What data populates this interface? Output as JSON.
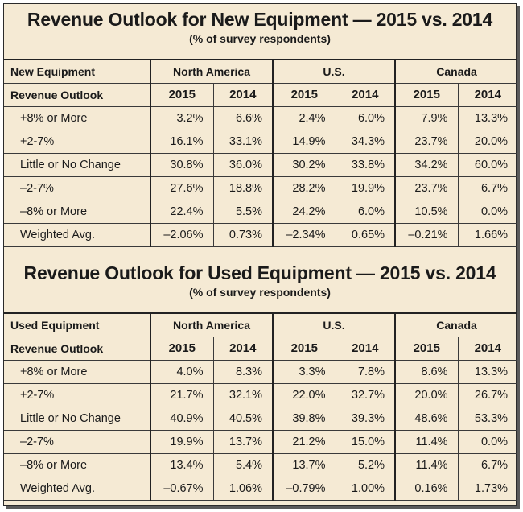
{
  "new_equipment": {
    "title": "Revenue Outlook for New Equipment — 2015 vs. 2014",
    "subtitle": "(% of survey respondents)",
    "corner_label": "New Equipment",
    "row_header": "Revenue Outlook",
    "regions": [
      "North America",
      "U.S.",
      "Canada"
    ],
    "years": [
      "2015",
      "2014",
      "2015",
      "2014",
      "2015",
      "2014"
    ],
    "rows": [
      {
        "label": "+8% or More",
        "values": [
          "3.2%",
          "6.6%",
          "2.4%",
          "6.0%",
          "7.9%",
          "13.3%"
        ]
      },
      {
        "label": "+2-7%",
        "values": [
          "16.1%",
          "33.1%",
          "14.9%",
          "34.3%",
          "23.7%",
          "20.0%"
        ]
      },
      {
        "label": "Little or No Change",
        "values": [
          "30.8%",
          "36.0%",
          "30.2%",
          "33.8%",
          "34.2%",
          "60.0%"
        ]
      },
      {
        "label": "–2-7%",
        "values": [
          "27.6%",
          "18.8%",
          "28.2%",
          "19.9%",
          "23.7%",
          "6.7%"
        ]
      },
      {
        "label": "–8% or More",
        "values": [
          "22.4%",
          "5.5%",
          "24.2%",
          "6.0%",
          "10.5%",
          "0.0%"
        ]
      },
      {
        "label": "Weighted Avg.",
        "values": [
          "–2.06%",
          "0.73%",
          "–2.34%",
          "0.65%",
          "–0.21%",
          "1.66%"
        ]
      }
    ]
  },
  "used_equipment": {
    "title": "Revenue Outlook for Used Equipment — 2015 vs. 2014",
    "subtitle": "(% of survey respondents)",
    "corner_label": "Used Equipment",
    "row_header": "Revenue Outlook",
    "regions": [
      "North America",
      "U.S.",
      "Canada"
    ],
    "years": [
      "2015",
      "2014",
      "2015",
      "2014",
      "2015",
      "2014"
    ],
    "rows": [
      {
        "label": "+8% or More",
        "values": [
          "4.0%",
          "8.3%",
          "3.3%",
          "7.8%",
          "8.6%",
          "13.3%"
        ]
      },
      {
        "label": "+2-7%",
        "values": [
          "21.7%",
          "32.1%",
          "22.0%",
          "32.7%",
          "20.0%",
          "26.7%"
        ]
      },
      {
        "label": "Little or No Change",
        "values": [
          "40.9%",
          "40.5%",
          "39.8%",
          "39.3%",
          "48.6%",
          "53.3%"
        ]
      },
      {
        "label": "–2-7%",
        "values": [
          "19.9%",
          "13.7%",
          "21.2%",
          "15.0%",
          "11.4%",
          "0.0%"
        ]
      },
      {
        "label": "–8% or More",
        "values": [
          "13.4%",
          "5.4%",
          "13.7%",
          "5.2%",
          "11.4%",
          "6.7%"
        ]
      },
      {
        "label": "Weighted Avg.",
        "values": [
          "–0.67%",
          "1.06%",
          "–0.79%",
          "1.00%",
          "0.16%",
          "1.73%"
        ]
      }
    ]
  },
  "colors": {
    "background": "#f5ead4",
    "border": "#2a2a2a",
    "text": "#1a1a1a"
  }
}
